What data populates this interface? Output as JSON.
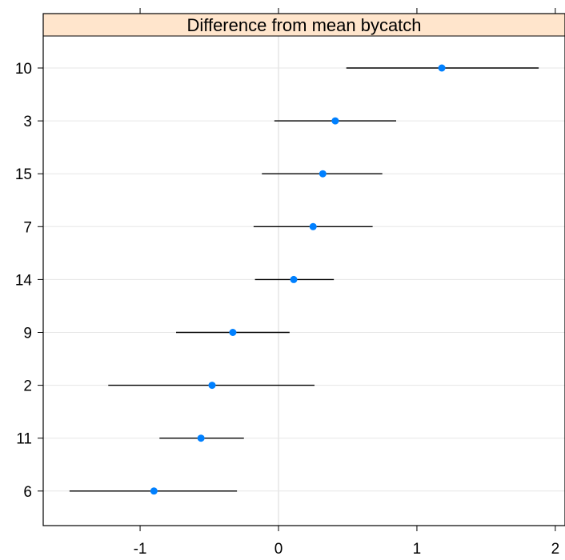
{
  "chart_data": {
    "type": "scatter",
    "subtype": "dotplot-with-error-bars",
    "title": "Difference from mean bycatch",
    "categories": [
      "10",
      "3",
      "15",
      "7",
      "14",
      "9",
      "2",
      "11",
      "6"
    ],
    "estimates": [
      1.18,
      0.41,
      0.32,
      0.25,
      0.11,
      -0.33,
      -0.48,
      -0.56,
      -0.9
    ],
    "lower": [
      0.49,
      -0.03,
      -0.12,
      -0.18,
      -0.17,
      -0.74,
      -1.23,
      -0.86,
      -1.51
    ],
    "upper": [
      1.88,
      0.85,
      0.75,
      0.68,
      0.4,
      0.08,
      0.26,
      -0.25,
      -0.3
    ],
    "xlim": [
      -1.7,
      2.07
    ],
    "x_ticks": [
      "-1",
      "0",
      "1",
      "2"
    ],
    "xlabel": "",
    "ylabel": "",
    "grid": true,
    "reference_line_x": 0,
    "colors": {
      "point": "#0080ff",
      "strip_bg": "#ffe5cc",
      "gridline": "#e6e6e6",
      "error_bar": "#000000"
    }
  }
}
